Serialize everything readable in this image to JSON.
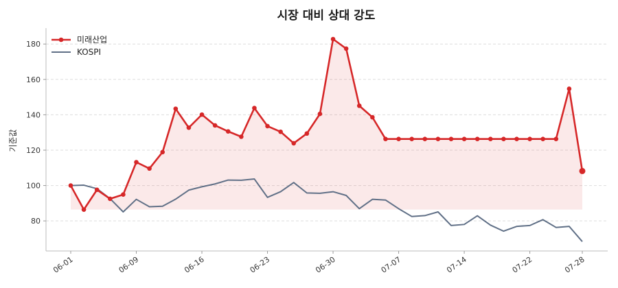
{
  "chart_data": {
    "type": "line",
    "title": "시장 대비 상대 강도",
    "xlabel": "",
    "ylabel": "기준값",
    "ylim": [
      63,
      189
    ],
    "yticks": [
      80,
      100,
      120,
      140,
      160,
      180
    ],
    "xtick_labels": [
      "06-01",
      "06-09",
      "06-16",
      "06-23",
      "06-30",
      "07-07",
      "07-14",
      "07-22",
      "07-28"
    ],
    "xtick_index": [
      0,
      5,
      10,
      15,
      20,
      25,
      30,
      35,
      39
    ],
    "grid": "y-dashed",
    "legend": "top-left",
    "fill_between_base": 86.4,
    "series": [
      {
        "name": "미래산업",
        "color": "#d62728",
        "marker": "circle",
        "values": [
          100,
          86.4,
          97.6,
          92.5,
          94.9,
          113.2,
          109.6,
          118.9,
          143.4,
          132.7,
          140.1,
          134.0,
          130.6,
          127.6,
          143.8,
          133.6,
          130.4,
          123.9,
          129.4,
          140.5,
          182.8,
          177.4,
          145.1,
          138.6,
          126.3,
          126.3,
          126.3,
          126.3,
          126.3,
          126.3,
          126.3,
          126.3,
          126.3,
          126.3,
          126.3,
          126.3,
          126.3,
          126.3,
          154.7,
          108.2
        ]
      },
      {
        "name": "KOSPI",
        "color": "#5f6f86",
        "marker": "none",
        "values": [
          100,
          100.2,
          98.2,
          92.6,
          85.1,
          92.2,
          88.0,
          88.3,
          92.3,
          97.4,
          99.3,
          100.9,
          103.1,
          103.0,
          103.7,
          93.3,
          96.5,
          101.7,
          95.8,
          95.6,
          96.5,
          94.4,
          86.9,
          92.2,
          91.8,
          86.9,
          82.5,
          83.0,
          85.1,
          77.4,
          78.0,
          82.9,
          77.6,
          74.2,
          76.9,
          77.4,
          80.7,
          76.3,
          76.9,
          68.3
        ]
      }
    ]
  }
}
